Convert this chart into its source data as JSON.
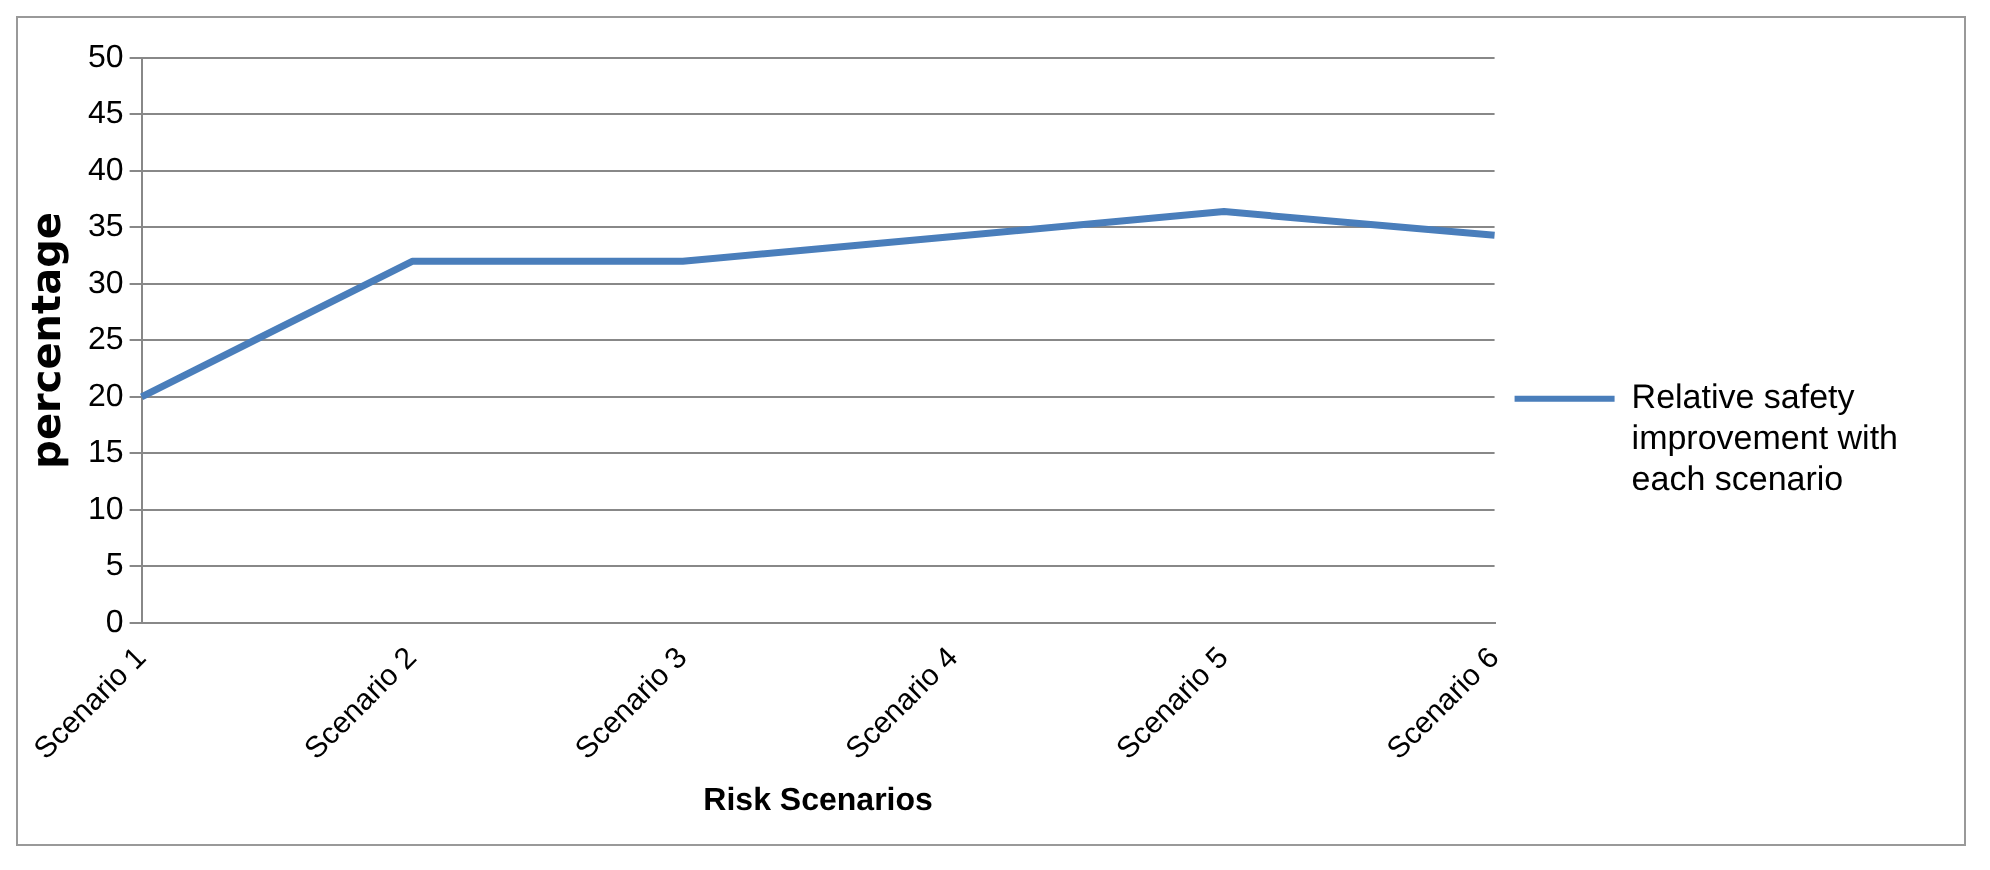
{
  "chart_data": {
    "type": "line",
    "xlabel": "Risk Scenarios",
    "ylabel": "percentage",
    "categories": [
      "Scenario 1",
      "Scenario 2",
      "Scenario 3",
      "Scenario 4",
      "Scenario 5",
      "Scenario 6"
    ],
    "series": [
      {
        "name": "Relative safety improvement with each scenario",
        "color": "#4a7ebb",
        "values": [
          20,
          32,
          32,
          34.2,
          36.4,
          34.3
        ]
      }
    ],
    "ylim": [
      0,
      50
    ],
    "yticks": [
      0,
      5,
      10,
      15,
      20,
      25,
      30,
      35,
      40,
      45,
      50
    ],
    "grid": "y",
    "legend": "right",
    "marker": "none"
  }
}
